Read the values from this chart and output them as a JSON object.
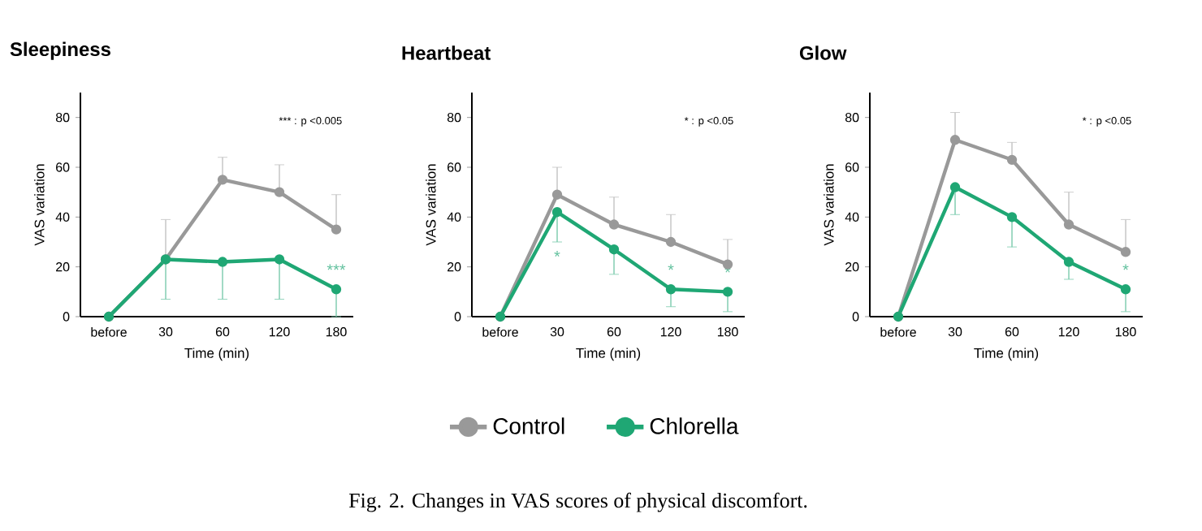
{
  "chart_data": [
    {
      "type": "line",
      "title": "Sleepiness",
      "xlabel": "Time (min)",
      "ylabel": "VAS variation",
      "categories": [
        "before",
        "30",
        "60",
        "120",
        "180"
      ],
      "ylim": [
        0,
        90
      ],
      "yticks": [
        0,
        20,
        40,
        60,
        80
      ],
      "marker": "circle",
      "grid": false,
      "legend": false,
      "series": [
        {
          "color": "#999999",
          "values": [
            0,
            23,
            55,
            50,
            35
          ],
          "errors": [
            null,
            [
              23,
              39
            ],
            [
              55,
              64
            ],
            [
              50,
              61
            ],
            [
              35,
              49
            ]
          ]
        },
        {
          "color": "#1fa774",
          "values": [
            0,
            23,
            22,
            23,
            11
          ],
          "errors": [
            null,
            [
              7,
              23
            ],
            [
              7,
              22
            ],
            [
              7,
              23
            ],
            [
              0,
              11
            ]
          ]
        }
      ],
      "annotations": [
        "*** : p <0.005",
        {
          "text": "***",
          "x": "180",
          "y": 11
        }
      ]
    },
    {
      "type": "line",
      "title": "Heartbeat",
      "xlabel": "Time (min)",
      "ylabel": "VAS variation",
      "categories": [
        "before",
        "30",
        "60",
        "120",
        "180"
      ],
      "ylim": [
        0,
        90
      ],
      "yticks": [
        0,
        20,
        40,
        60,
        80
      ],
      "marker": "circle",
      "grid": false,
      "legend": "bottom",
      "series": [
        {
          "name": "Control",
          "color": "#999999",
          "values": [
            0,
            49,
            37,
            30,
            21
          ],
          "errors": [
            null,
            [
              49,
              60
            ],
            [
              37,
              48
            ],
            [
              30,
              41
            ],
            [
              21,
              31
            ]
          ]
        },
        {
          "name": "Chlorella",
          "color": "#1fa774",
          "values": [
            0,
            42,
            27,
            11,
            10
          ],
          "errors": [
            null,
            [
              30,
              42
            ],
            [
              17,
              27
            ],
            [
              4,
              11
            ],
            [
              2,
              10
            ]
          ]
        }
      ],
      "annotations": [
        "* : p <0.05",
        {
          "text": "*",
          "x": "30",
          "y": 30
        },
        {
          "text": "*",
          "x": "120",
          "y": 11
        },
        {
          "text": "*",
          "x": "180",
          "y": 10
        },
        "Fig. 2. Changes in VAS scores of physical discomfort."
      ]
    },
    {
      "type": "line",
      "title": "Glow",
      "xlabel": "Time (min)",
      "ylabel": "VAS variation",
      "categories": [
        "before",
        "30",
        "60",
        "120",
        "180"
      ],
      "ylim": [
        0,
        90
      ],
      "yticks": [
        0,
        20,
        40,
        60,
        80
      ],
      "marker": "circle",
      "grid": false,
      "legend": false,
      "series": [
        {
          "color": "#999999",
          "values": [
            0,
            71,
            63,
            37,
            26
          ],
          "errors": [
            null,
            [
              71,
              82
            ],
            [
              63,
              70
            ],
            [
              37,
              50
            ],
            [
              26,
              39
            ]
          ]
        },
        {
          "color": "#1fa774",
          "values": [
            0,
            52,
            40,
            22,
            11
          ],
          "errors": [
            null,
            [
              41,
              52
            ],
            [
              28,
              40
            ],
            [
              15,
              22
            ],
            [
              2,
              11
            ]
          ]
        }
      ],
      "annotations": [
        "* : p <0.05",
        {
          "text": "*",
          "x": "180",
          "y": 11
        }
      ]
    }
  ]
}
